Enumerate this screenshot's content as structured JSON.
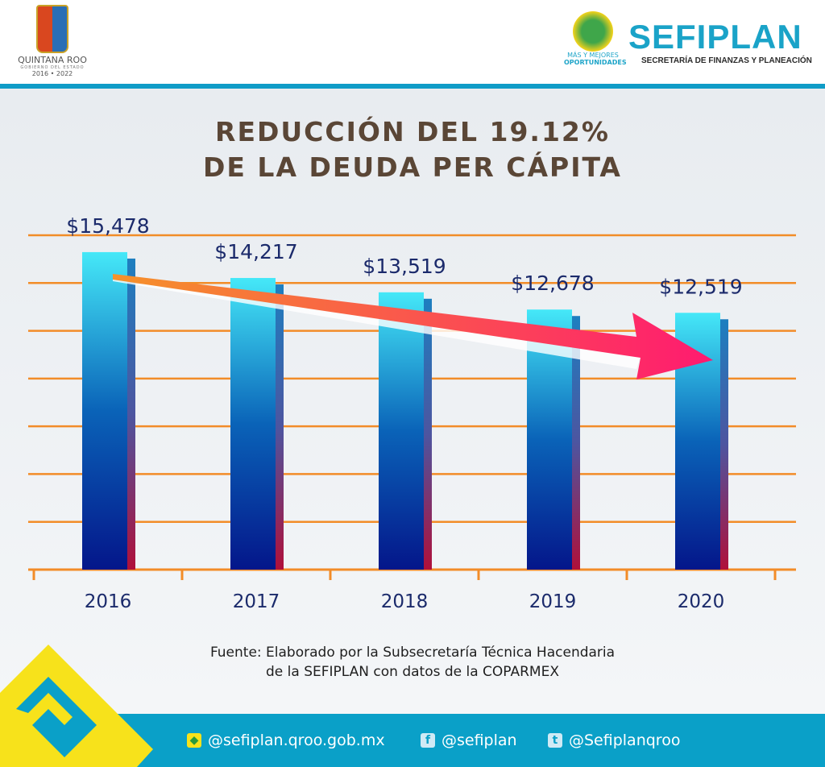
{
  "header": {
    "left_logo": {
      "name": "QUINTANA ROO",
      "subtitle": "GOBIERNO DEL ESTADO",
      "years": "2016 • 2022"
    },
    "right_logo": {
      "slogan_1": "MÁS Y MEJORES",
      "slogan_2": "OPORTUNIDADES",
      "brand": "SEFIPLAN",
      "brand_sub": "SECRETARÍA DE FINANZAS Y PLANEACIÓN"
    }
  },
  "colors": {
    "accent": "#0aa0c8",
    "grid": "#f28c28",
    "title": "#5a4636",
    "labels": "#1b2a6b",
    "arrow": "#ff2a6d"
  },
  "chart_data": {
    "type": "bar",
    "title_line1": "REDUCCIÓN DEL 19.12%",
    "title_line2": "DE LA DEUDA PER CÁPITA",
    "categories": [
      "2016",
      "2017",
      "2018",
      "2019",
      "2020"
    ],
    "values": [
      15478,
      14217,
      13519,
      12678,
      12519
    ],
    "data_labels": [
      "$15,478",
      "$14,217",
      "$13,519",
      "$12,678",
      "$12,519"
    ],
    "ylim": [
      0,
      16300
    ],
    "grid": true,
    "annotation": "downward trend arrow from 2016 to 2020"
  },
  "source": {
    "line1": "Fuente: Elaborado por la Subsecretaría Técnica Hacendaria",
    "line2": "de la SEFIPLAN con datos de la COPARMEX"
  },
  "footer": {
    "web": "@sefiplan.qroo.gob.mx",
    "facebook": "@sefiplan",
    "twitter": "@Sefiplanqroo"
  }
}
